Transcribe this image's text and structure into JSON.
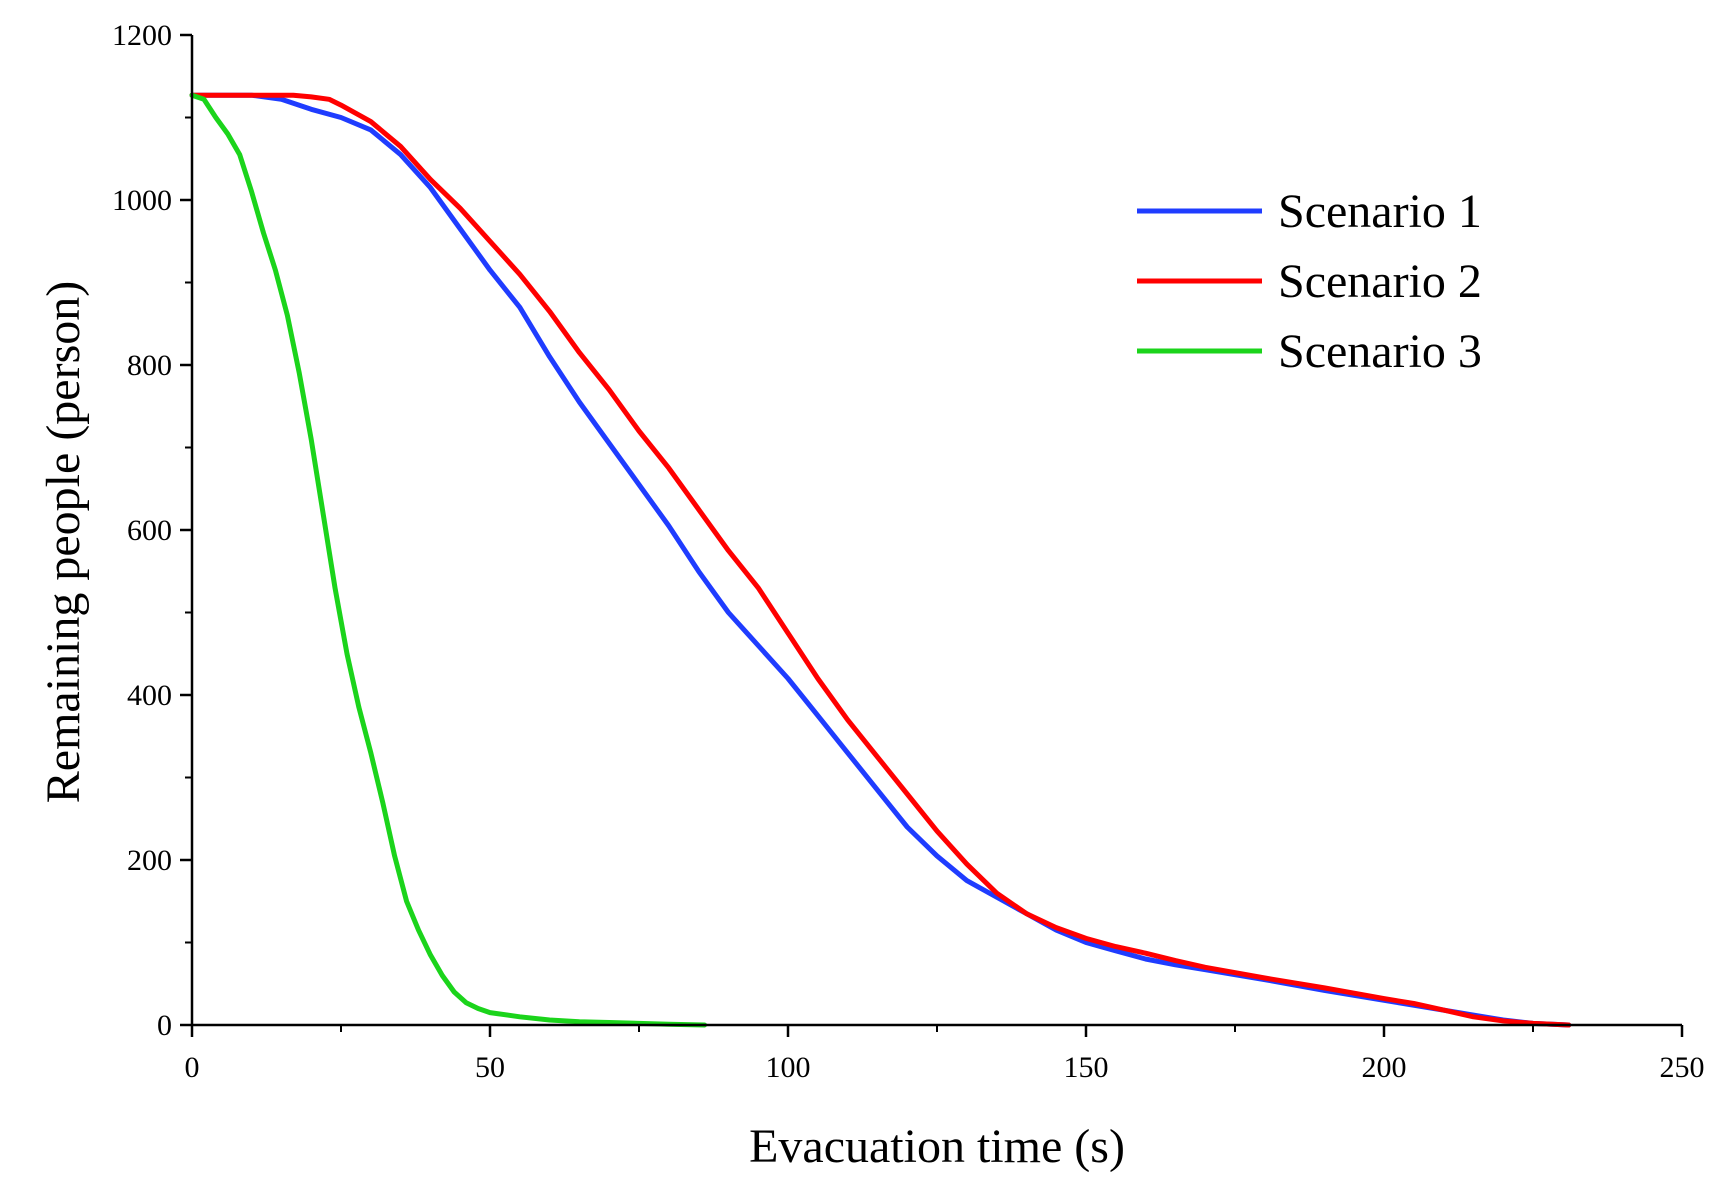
{
  "chart_data": {
    "type": "line",
    "title": "",
    "xlabel": "Evacuation time (s)",
    "ylabel": "Remaining people (person)",
    "xlim": [
      0,
      250
    ],
    "ylim": [
      0,
      1200
    ],
    "x_ticks": [
      0,
      50,
      100,
      150,
      200,
      250
    ],
    "x_tick_labels": [
      "0",
      "50",
      "100",
      "150",
      "200",
      "250"
    ],
    "y_ticks": [
      0,
      200,
      400,
      600,
      800,
      1000,
      1200
    ],
    "y_tick_labels": [
      "0",
      "200",
      "400",
      "600",
      "800",
      "1000",
      "1200"
    ],
    "grid": false,
    "legend_position": "top-right",
    "series": [
      {
        "name": "Scenario 1",
        "color": "#1f3cff",
        "points": [
          [
            0,
            1127
          ],
          [
            10,
            1127
          ],
          [
            15,
            1122
          ],
          [
            20,
            1110
          ],
          [
            25,
            1100
          ],
          [
            30,
            1085
          ],
          [
            35,
            1055
          ],
          [
            40,
            1015
          ],
          [
            45,
            965
          ],
          [
            50,
            915
          ],
          [
            55,
            870
          ],
          [
            60,
            810
          ],
          [
            65,
            755
          ],
          [
            70,
            705
          ],
          [
            75,
            655
          ],
          [
            80,
            605
          ],
          [
            85,
            550
          ],
          [
            90,
            500
          ],
          [
            95,
            460
          ],
          [
            100,
            420
          ],
          [
            105,
            375
          ],
          [
            110,
            330
          ],
          [
            115,
            285
          ],
          [
            120,
            240
          ],
          [
            125,
            205
          ],
          [
            130,
            175
          ],
          [
            135,
            155
          ],
          [
            140,
            135
          ],
          [
            145,
            115
          ],
          [
            150,
            100
          ],
          [
            155,
            90
          ],
          [
            160,
            80
          ],
          [
            165,
            73
          ],
          [
            170,
            67
          ],
          [
            180,
            55
          ],
          [
            190,
            42
          ],
          [
            200,
            30
          ],
          [
            210,
            18
          ],
          [
            215,
            12
          ],
          [
            220,
            6
          ],
          [
            225,
            2
          ],
          [
            231,
            0
          ]
        ]
      },
      {
        "name": "Scenario 2",
        "color": "#ff0000",
        "points": [
          [
            0,
            1127
          ],
          [
            17,
            1127
          ],
          [
            20,
            1125
          ],
          [
            23,
            1122
          ],
          [
            25,
            1115
          ],
          [
            30,
            1095
          ],
          [
            35,
            1065
          ],
          [
            40,
            1025
          ],
          [
            45,
            990
          ],
          [
            50,
            950
          ],
          [
            55,
            910
          ],
          [
            60,
            865
          ],
          [
            65,
            815
          ],
          [
            70,
            770
          ],
          [
            75,
            720
          ],
          [
            80,
            675
          ],
          [
            85,
            625
          ],
          [
            90,
            575
          ],
          [
            95,
            530
          ],
          [
            100,
            475
          ],
          [
            105,
            420
          ],
          [
            110,
            370
          ],
          [
            115,
            325
          ],
          [
            120,
            280
          ],
          [
            125,
            235
          ],
          [
            130,
            195
          ],
          [
            135,
            160
          ],
          [
            140,
            135
          ],
          [
            145,
            118
          ],
          [
            150,
            105
          ],
          [
            155,
            95
          ],
          [
            160,
            87
          ],
          [
            165,
            78
          ],
          [
            170,
            70
          ],
          [
            180,
            57
          ],
          [
            190,
            45
          ],
          [
            200,
            32
          ],
          [
            205,
            26
          ],
          [
            210,
            18
          ],
          [
            215,
            10
          ],
          [
            220,
            5
          ],
          [
            225,
            2
          ],
          [
            231,
            0
          ]
        ]
      },
      {
        "name": "Scenario 3",
        "color": "#1bd41b",
        "points": [
          [
            0,
            1127
          ],
          [
            2,
            1122
          ],
          [
            4,
            1100
          ],
          [
            6,
            1080
          ],
          [
            8,
            1055
          ],
          [
            10,
            1010
          ],
          [
            12,
            960
          ],
          [
            14,
            915
          ],
          [
            16,
            860
          ],
          [
            18,
            790
          ],
          [
            20,
            710
          ],
          [
            22,
            620
          ],
          [
            24,
            530
          ],
          [
            26,
            450
          ],
          [
            28,
            385
          ],
          [
            30,
            330
          ],
          [
            32,
            270
          ],
          [
            34,
            205
          ],
          [
            36,
            150
          ],
          [
            38,
            115
          ],
          [
            40,
            85
          ],
          [
            42,
            60
          ],
          [
            44,
            40
          ],
          [
            46,
            27
          ],
          [
            48,
            20
          ],
          [
            50,
            15
          ],
          [
            55,
            10
          ],
          [
            60,
            6
          ],
          [
            65,
            4
          ],
          [
            70,
            3
          ],
          [
            75,
            2
          ],
          [
            80,
            1
          ],
          [
            86,
            0
          ]
        ]
      }
    ]
  }
}
